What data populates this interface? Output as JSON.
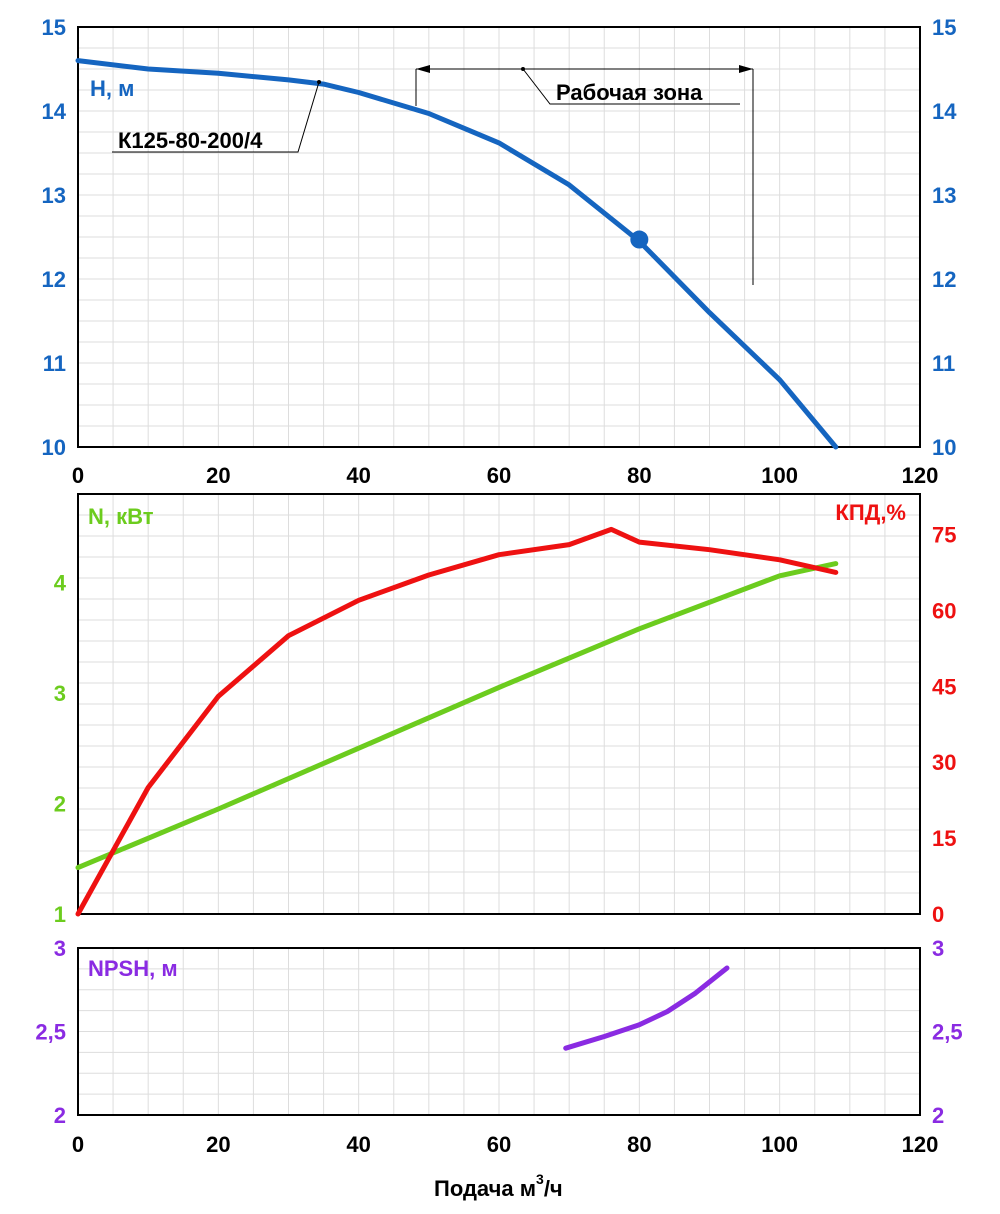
{
  "colors": {
    "head": "#1565c0",
    "power": "#6ccc1e",
    "efficiency": "#ee1111",
    "npsh": "#8a2be2",
    "text": "#000000"
  },
  "chart_data": [
    {
      "type": "line",
      "panel": "head",
      "ylabel": "H, м",
      "xlim": [
        0,
        120
      ],
      "ylim": [
        10,
        15
      ],
      "x_ticks": [
        "0",
        "20",
        "40",
        "60",
        "80",
        "100",
        "120"
      ],
      "y_ticks": [
        "10",
        "11",
        "12",
        "13",
        "14",
        "15"
      ],
      "grid": true,
      "series": [
        {
          "name": "К125-80-200/4",
          "x": [
            0,
            10,
            20,
            30,
            35,
            40,
            50,
            60,
            70,
            80,
            90,
            100,
            108
          ],
          "y": [
            14.6,
            14.5,
            14.45,
            14.37,
            14.32,
            14.22,
            13.97,
            13.62,
            13.12,
            12.45,
            11.6,
            10.8,
            10.0
          ]
        }
      ],
      "operating_point": {
        "x": 80,
        "y": 12.47
      },
      "annotations": {
        "curve_label": "К125-80-200/4",
        "working_zone": "Рабочая зона",
        "working_zone_range": [
          48,
          96
        ]
      }
    },
    {
      "type": "line",
      "panel": "power_efficiency",
      "ylabel_left": "N, кВт",
      "ylabel_right": "КПД,%",
      "xlim": [
        0,
        120
      ],
      "ylim_left": [
        1,
        4.8
      ],
      "ylim_right": [
        0,
        83
      ],
      "y_ticks_left": [
        "1",
        "2",
        "3",
        "4"
      ],
      "y_ticks_right": [
        "0",
        "15",
        "30",
        "45",
        "60",
        "75"
      ],
      "grid": true,
      "series": [
        {
          "name": "N, кВт",
          "axis": "left",
          "x": [
            0,
            20,
            40,
            60,
            80,
            100,
            108
          ],
          "y": [
            1.42,
            1.95,
            2.5,
            3.05,
            3.58,
            4.06,
            4.17
          ]
        },
        {
          "name": "КПД,%",
          "axis": "right",
          "x": [
            0,
            10,
            20,
            30,
            40,
            50,
            60,
            70,
            76,
            80,
            90,
            100,
            108
          ],
          "y": [
            0,
            25,
            43,
            55,
            62,
            67,
            71,
            73,
            76,
            73.5,
            72,
            70,
            67.5
          ]
        }
      ]
    },
    {
      "type": "line",
      "panel": "npsh",
      "ylabel": "NPSH, м",
      "xlabel": "Подача м",
      "xlabel_sup": "3",
      "xlabel_tail": "/ч",
      "xlim": [
        0,
        120
      ],
      "ylim": [
        2,
        3
      ],
      "x_ticks": [
        "0",
        "20",
        "40",
        "60",
        "80",
        "100",
        "120"
      ],
      "y_ticks": [
        "2",
        "2,5",
        "3"
      ],
      "grid": true,
      "series": [
        {
          "name": "NPSH, м",
          "x": [
            69.5,
            75,
            80,
            84,
            88,
            92.5
          ],
          "y": [
            2.4,
            2.47,
            2.54,
            2.62,
            2.73,
            2.88
          ]
        }
      ]
    }
  ]
}
